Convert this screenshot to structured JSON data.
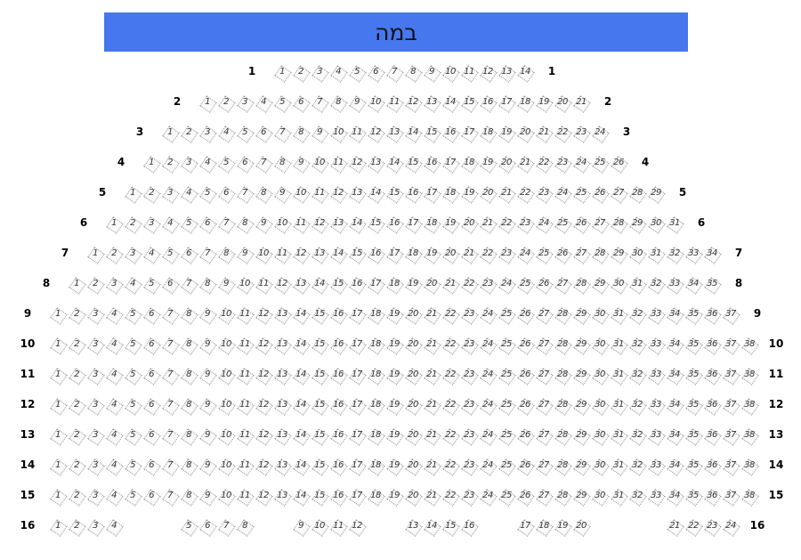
{
  "stage": {
    "label": "במה",
    "color": "#4677ee"
  },
  "rows": [
    {
      "label": "1",
      "seats": 14
    },
    {
      "label": "2",
      "seats": 21
    },
    {
      "label": "3",
      "seats": 24
    },
    {
      "label": "4",
      "seats": 26
    },
    {
      "label": "5",
      "seats": 29
    },
    {
      "label": "6",
      "seats": 31
    },
    {
      "label": "7",
      "seats": 34
    },
    {
      "label": "8",
      "seats": 35
    },
    {
      "label": "9",
      "seats": 37
    },
    {
      "label": "10",
      "seats": 38
    },
    {
      "label": "11",
      "seats": 38
    },
    {
      "label": "12",
      "seats": 38
    },
    {
      "label": "13",
      "seats": 38
    },
    {
      "label": "14",
      "seats": 38
    },
    {
      "label": "15",
      "seats": 38
    },
    {
      "label": "16",
      "seat_layout": [
        1,
        2,
        3,
        4,
        null,
        null,
        null,
        5,
        6,
        7,
        8,
        null,
        null,
        9,
        10,
        11,
        12,
        null,
        null,
        13,
        14,
        15,
        16,
        null,
        null,
        17,
        18,
        19,
        20,
        null,
        null,
        null,
        null,
        21,
        22,
        23,
        24,
        null
      ]
    }
  ]
}
